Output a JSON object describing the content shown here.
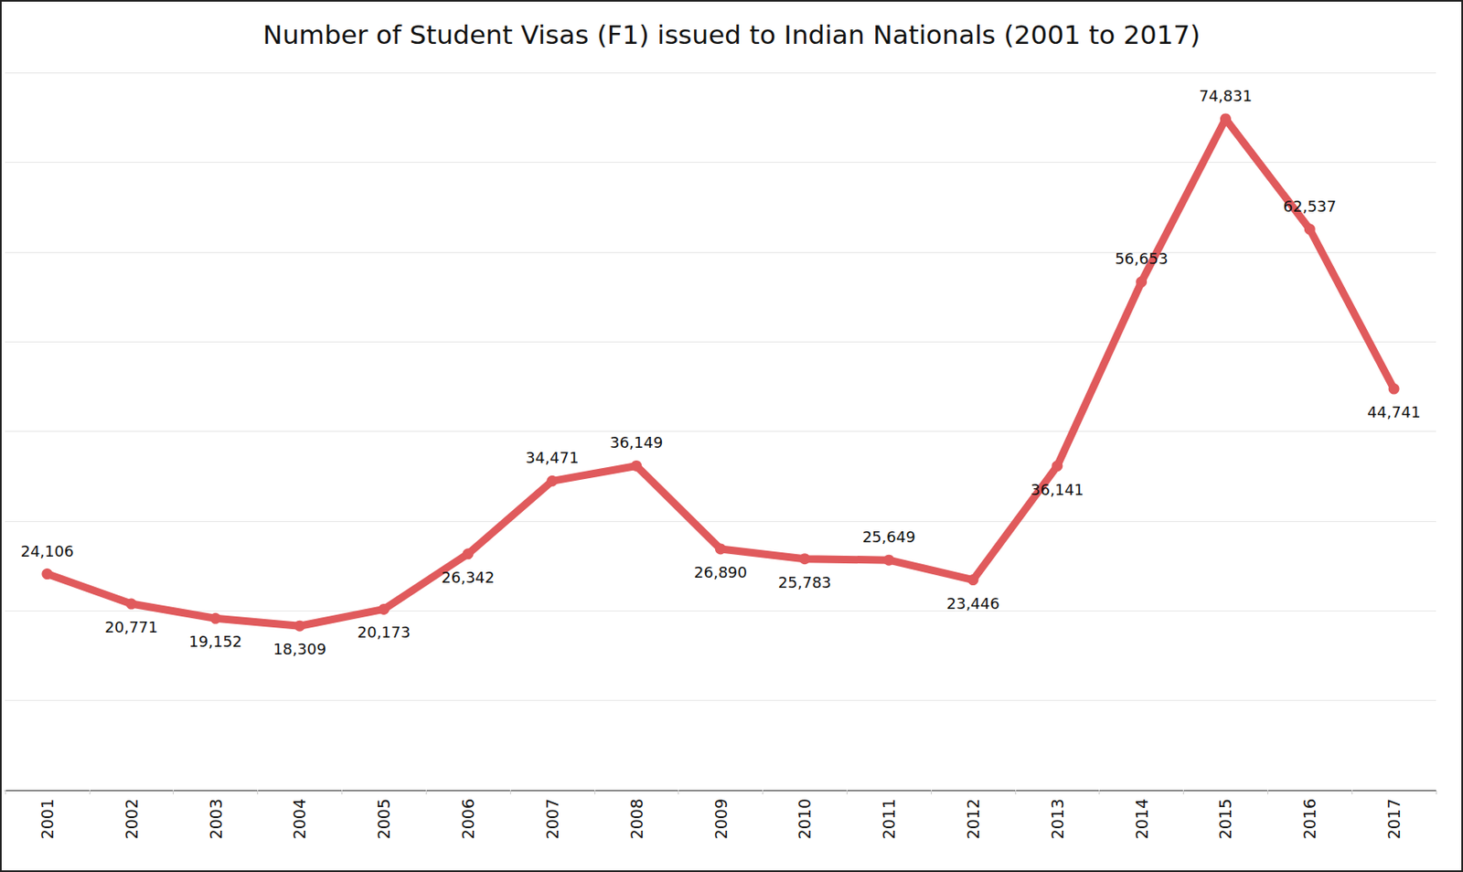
{
  "chart_data": {
    "type": "line",
    "title": "Number of Student Visas (F1) issued to Indian Nationals (2001 to 2017)",
    "categories": [
      "2001",
      "2002",
      "2003",
      "2004",
      "2005",
      "2006",
      "2007",
      "2008",
      "2009",
      "2010",
      "2011",
      "2012",
      "2013",
      "2014",
      "2015",
      "2016",
      "2017"
    ],
    "values": [
      24106,
      20771,
      19152,
      18309,
      20173,
      26342,
      34471,
      36149,
      26890,
      25783,
      25649,
      23446,
      36141,
      56653,
      74831,
      62537,
      44741
    ],
    "value_labels": [
      "24,106",
      "20,771",
      "19,152",
      "18,309",
      "20,173",
      "26,342",
      "34,471",
      "36,149",
      "26,890",
      "25,783",
      "25,649",
      "23,446",
      "36,141",
      "56,653",
      "74,831",
      "62,537",
      "44,741"
    ],
    "color": "#e05a5c",
    "marker": "circle",
    "ylim": [
      0,
      80000
    ],
    "yticks": [
      0,
      10000,
      20000,
      30000,
      40000,
      50000,
      60000,
      70000,
      80000
    ],
    "grid": true,
    "data_labels": true,
    "tick_labels": "x"
  }
}
